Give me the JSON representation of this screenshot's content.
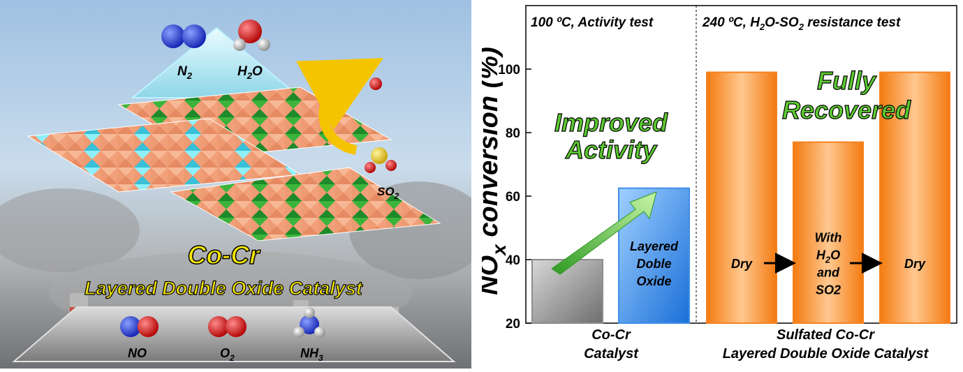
{
  "illustration": {
    "title": "Co-Cr",
    "subtitle": "Layered Double Oxide Catalyst",
    "top_molecules": [
      {
        "label": "N",
        "sub": "2"
      },
      {
        "label": "H",
        "sub": "2",
        "tail": "O"
      }
    ],
    "bottom_molecules": [
      {
        "label": "NO",
        "sub": "",
        "tail": ""
      },
      {
        "label": "O",
        "sub": "2",
        "tail": ""
      },
      {
        "label": "NH",
        "sub": "3",
        "tail": ""
      }
    ],
    "so2_label": {
      "label": "SO",
      "sub": "2"
    },
    "colors": {
      "orange_tile": "#f2a07a",
      "green_tile": "#3cb43c",
      "cyan_tile": "#6fe0ee"
    }
  },
  "chart_data": {
    "type": "bar",
    "ylabel": "NO",
    "ylabel_sub": "x",
    "ylabel_tail": " conversion (%)",
    "ylim": [
      20,
      120
    ],
    "yticks": [
      20,
      40,
      60,
      80,
      100
    ],
    "panels": [
      {
        "label": "100 ºC, Activity test"
      },
      {
        "label": "240 ºC, H",
        "sub1": "2",
        "mid": "O-SO",
        "sub2": "2",
        "tail": " resistance test"
      }
    ],
    "bars": [
      {
        "value": 40,
        "color": "#8c8c8c",
        "label_lines": []
      },
      {
        "value": 62.5,
        "color": "#3f8fe8",
        "label_lines": [
          "Layered",
          "Doble",
          "Oxide"
        ]
      },
      {
        "value": 99,
        "color": "#f58220",
        "label_lines": [
          "Dry"
        ]
      },
      {
        "value": 77,
        "color": "#f58220",
        "label_lines": [
          "With",
          "H2O",
          "and",
          "SO2"
        ]
      },
      {
        "value": 99,
        "color": "#f58220",
        "label_lines": [
          "Dry"
        ]
      }
    ],
    "group_labels": [
      {
        "lines": [
          "Co-Cr",
          "Catalyst"
        ]
      },
      {
        "lines": [
          "Sulfated Co-Cr",
          "Layered Double Oxide Catalyst"
        ]
      }
    ],
    "annotations": [
      {
        "lines": [
          "Improved",
          "Activity"
        ],
        "color": "#5cc832"
      },
      {
        "lines": [
          "Fully",
          "Recovered"
        ],
        "color": "#5cc832"
      }
    ],
    "grid": false,
    "legend": "none"
  }
}
